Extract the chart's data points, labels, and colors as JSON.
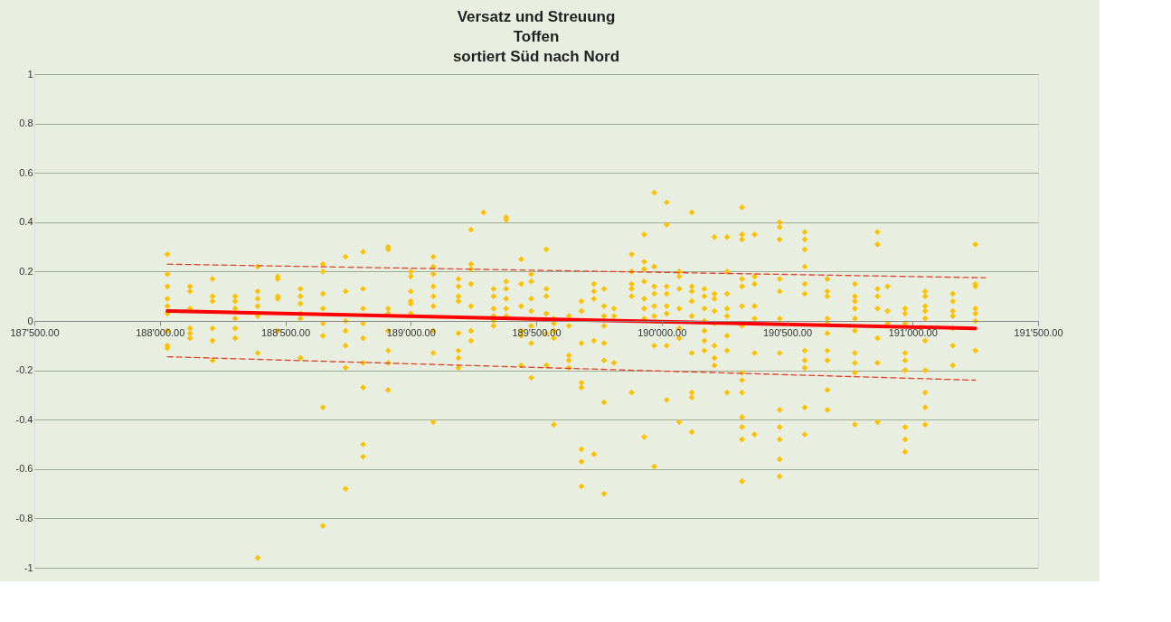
{
  "chart_data": {
    "type": "scatter",
    "title": "Versatz und Streuung\nToffen\nsortiert Süd nach Nord",
    "xlim": [
      187500,
      191500
    ],
    "xticks": [
      {
        "value": 187500,
        "label": "187'500.00"
      },
      {
        "value": 188000,
        "label": "188'000.00"
      },
      {
        "value": 188500,
        "label": "188'500.00"
      },
      {
        "value": 189000,
        "label": "189'000.00"
      },
      {
        "value": 189500,
        "label": "189'500.00"
      },
      {
        "value": 190000,
        "label": "190'000.00"
      },
      {
        "value": 190500,
        "label": "190'500.00"
      },
      {
        "value": 191000,
        "label": "191'000.00"
      },
      {
        "value": 191500,
        "label": "191'500.00"
      }
    ],
    "ylim": [
      -1,
      1
    ],
    "yticks": [
      -1,
      -0.8,
      -0.6,
      -0.4,
      -0.2,
      0,
      0.2,
      0.4,
      0.6,
      0.8,
      1
    ],
    "grid": "y",
    "series": [
      {
        "marker": "diamond",
        "color": "#ffc000",
        "x": [
          188030,
          188030,
          188030,
          188030,
          188030,
          188030,
          188030,
          188030,
          188030,
          188120,
          188120,
          188120,
          188120,
          188120,
          188120,
          188210,
          188210,
          188210,
          188210,
          188210,
          188210,
          188300,
          188300,
          188300,
          188300,
          188300,
          188300,
          188390,
          188390,
          188390,
          188390,
          188390,
          188390,
          188390,
          188470,
          188470,
          188470,
          188470,
          188470,
          188560,
          188560,
          188560,
          188560,
          188560,
          188560,
          188650,
          188650,
          188650,
          188650,
          188650,
          188650,
          188650,
          188650,
          188740,
          188740,
          188740,
          188740,
          188740,
          188740,
          188740,
          188810,
          188810,
          188810,
          188810,
          188810,
          188810,
          188810,
          188810,
          188810,
          188910,
          188910,
          188910,
          188910,
          188910,
          188910,
          188910,
          188910,
          189000,
          189000,
          189000,
          189000,
          189000,
          189000,
          189090,
          189090,
          189090,
          189090,
          189090,
          189090,
          189090,
          189090,
          189090,
          189190,
          189190,
          189190,
          189190,
          189190,
          189190,
          189190,
          189190,
          189240,
          189240,
          189240,
          189240,
          189240,
          189240,
          189240,
          189290,
          189330,
          189330,
          189330,
          189330,
          189330,
          189330,
          189380,
          189380,
          189380,
          189380,
          189380,
          189380,
          189380,
          189440,
          189440,
          189440,
          189440,
          189440,
          189440,
          189480,
          189480,
          189480,
          189480,
          189480,
          189480,
          189480,
          189540,
          189540,
          189540,
          189540,
          189540,
          189540,
          189570,
          189570,
          189570,
          189570,
          189570,
          189630,
          189630,
          189630,
          189630,
          189630,
          189680,
          189680,
          189680,
          189680,
          189680,
          189680,
          189680,
          189680,
          189730,
          189730,
          189730,
          189730,
          189730,
          189770,
          189770,
          189770,
          189770,
          189770,
          189770,
          189770,
          189770,
          189810,
          189810,
          189810,
          189880,
          189880,
          189880,
          189880,
          189880,
          189880,
          189930,
          189930,
          189930,
          189930,
          189930,
          189930,
          189930,
          189930,
          189970,
          189970,
          189970,
          189970,
          189970,
          189970,
          189970,
          189970,
          190020,
          190020,
          190020,
          190020,
          190020,
          190020,
          190020,
          190020,
          190070,
          190070,
          190070,
          190070,
          190070,
          190070,
          190070,
          190120,
          190120,
          190120,
          190120,
          190120,
          190120,
          190120,
          190120,
          190120,
          190170,
          190170,
          190170,
          190170,
          190170,
          190170,
          190170,
          190210,
          190210,
          190210,
          190210,
          190210,
          190210,
          190210,
          190210,
          190260,
          190260,
          190260,
          190260,
          190260,
          190260,
          190260,
          190260,
          190320,
          190320,
          190320,
          190320,
          190320,
          190320,
          190320,
          190320,
          190320,
          190320,
          190320,
          190320,
          190320,
          190320,
          190370,
          190370,
          190370,
          190370,
          190370,
          190370,
          190370,
          190470,
          190470,
          190470,
          190470,
          190470,
          190470,
          190470,
          190470,
          190470,
          190470,
          190470,
          190470,
          190570,
          190570,
          190570,
          190570,
          190570,
          190570,
          190570,
          190570,
          190570,
          190570,
          190570,
          190660,
          190660,
          190660,
          190660,
          190660,
          190660,
          190660,
          190660,
          190660,
          190660,
          190770,
          190770,
          190770,
          190770,
          190770,
          190770,
          190770,
          190770,
          190770,
          190770,
          190860,
          190860,
          190860,
          190860,
          190860,
          190860,
          190860,
          190860,
          190900,
          190900,
          190900,
          190970,
          190970,
          190970,
          190970,
          190970,
          190970,
          190970,
          190970,
          190970,
          191050,
          191050,
          191050,
          191050,
          191050,
          191050,
          191050,
          191050,
          191050,
          191050,
          191160,
          191160,
          191160,
          191160,
          191160,
          191160,
          191160,
          191250,
          191250,
          191250,
          191250,
          191250,
          191250,
          191250
        ],
        "values": [
          0.27,
          0.19,
          0.14,
          0.09,
          0.06,
          0.03,
          -0.04,
          -0.1,
          -0.11,
          0.14,
          0.12,
          0.05,
          -0.03,
          -0.05,
          -0.07,
          0.17,
          0.1,
          0.08,
          -0.03,
          -0.08,
          -0.16,
          0.1,
          0.08,
          0.05,
          0.01,
          -0.03,
          -0.07,
          0.22,
          0.12,
          0.09,
          0.06,
          0.02,
          -0.13,
          -0.96,
          0.18,
          0.17,
          0.1,
          0.09,
          -0.04,
          0.13,
          0.1,
          0.07,
          0.03,
          0.01,
          -0.15,
          0.23,
          0.2,
          0.11,
          0.05,
          -0.01,
          -0.06,
          -0.35,
          -0.83,
          0.26,
          0.12,
          0,
          -0.04,
          -0.1,
          -0.19,
          -0.68,
          0.28,
          0.13,
          0.05,
          -0.01,
          -0.07,
          -0.17,
          -0.27,
          -0.5,
          -0.55,
          0.3,
          0.29,
          0.05,
          0.03,
          -0.04,
          -0.12,
          -0.17,
          -0.28,
          0.2,
          0.18,
          0.12,
          0.08,
          0.07,
          0.03,
          0.26,
          0.22,
          0.19,
          0.14,
          0.1,
          0.06,
          -0.04,
          -0.13,
          -0.41,
          0.17,
          0.14,
          0.1,
          0.08,
          -0.05,
          -0.12,
          -0.15,
          -0.19,
          0.37,
          0.23,
          0.21,
          0.15,
          0.06,
          -0.04,
          -0.08,
          0.44,
          0.13,
          0.1,
          0.05,
          0.02,
          0,
          -0.02,
          0.42,
          0.41,
          0.16,
          0.13,
          0.09,
          0.05,
          0.02,
          0.25,
          0.15,
          0.06,
          -0.04,
          -0.06,
          -0.18,
          0.19,
          0.16,
          0.09,
          0.04,
          -0.02,
          -0.09,
          -0.23,
          0.29,
          0.13,
          0.1,
          0.03,
          -0.05,
          -0.18,
          0.01,
          -0.01,
          -0.04,
          -0.07,
          -0.42,
          0.02,
          -0.02,
          -0.14,
          -0.16,
          -0.19,
          0.08,
          0.04,
          -0.09,
          -0.25,
          -0.27,
          -0.52,
          -0.57,
          -0.67,
          0.15,
          0.12,
          0.09,
          -0.08,
          -0.54,
          0.13,
          0.06,
          0.02,
          -0.02,
          -0.09,
          -0.16,
          -0.33,
          -0.7,
          0.05,
          0.02,
          -0.17,
          0.27,
          0.2,
          0.15,
          0.13,
          0.1,
          -0.29,
          0.35,
          0.24,
          0.21,
          0.16,
          0.09,
          0.05,
          0.01,
          -0.47,
          0.52,
          0.22,
          0.14,
          0.11,
          0.06,
          0.02,
          -0.1,
          -0.59,
          0.48,
          0.39,
          0.14,
          0.11,
          0.06,
          0.03,
          -0.1,
          -0.32,
          0.2,
          0.18,
          0.13,
          0.05,
          -0.03,
          -0.07,
          -0.41,
          0.44,
          0.14,
          0.12,
          0.08,
          0.02,
          -0.13,
          -0.29,
          -0.31,
          -0.45,
          0.13,
          0.1,
          0.05,
          0,
          -0.04,
          -0.08,
          -0.12,
          0.34,
          0.11,
          0.09,
          0.04,
          -0.01,
          -0.1,
          -0.15,
          -0.18,
          0.34,
          0.2,
          0.11,
          0.05,
          0.02,
          -0.06,
          -0.12,
          -0.29,
          0.46,
          0.35,
          0.33,
          0.17,
          0.14,
          0.06,
          -0.02,
          -0.21,
          -0.24,
          -0.29,
          -0.39,
          -0.43,
          -0.48,
          -0.65,
          0.35,
          0.18,
          0.15,
          0.06,
          0.01,
          -0.13,
          -0.46,
          0.4,
          0.38,
          0.33,
          0.17,
          0.12,
          0.01,
          -0.13,
          -0.36,
          -0.43,
          -0.48,
          -0.56,
          -0.63,
          0.36,
          0.33,
          0.29,
          0.22,
          0.15,
          0.11,
          -0.12,
          -0.16,
          -0.19,
          -0.35,
          -0.46,
          0.17,
          0.12,
          0.1,
          0.01,
          -0.01,
          -0.05,
          -0.12,
          -0.16,
          -0.28,
          -0.36,
          0.15,
          0.1,
          0.08,
          0.05,
          0.01,
          -0.04,
          -0.13,
          -0.17,
          -0.21,
          -0.42,
          0.36,
          0.31,
          0.13,
          0.1,
          0.05,
          -0.07,
          -0.17,
          -0.41,
          0.14,
          0.04,
          -0.01,
          0.05,
          0.03,
          -0.01,
          -0.13,
          -0.16,
          -0.2,
          -0.43,
          -0.48,
          -0.53,
          0.12,
          0.1,
          0.06,
          0.04,
          0.01,
          -0.08,
          -0.2,
          -0.29,
          -0.35,
          -0.42,
          0.11,
          0.08,
          0.04,
          0.02,
          -0.03,
          -0.1,
          -0.18,
          0.31,
          0.15,
          0.14,
          0.05,
          0.03,
          0,
          -0.12
        ]
      },
      {
        "type": "line",
        "color": "#ff0000",
        "line_style": "solid",
        "x": [
          188030,
          191250
        ],
        "values": [
          0.04,
          -0.03
        ]
      },
      {
        "type": "line",
        "color": "#e0402a",
        "line_style": "dashed",
        "x": [
          188030,
          191290
        ],
        "values": [
          0.23,
          0.175
        ]
      },
      {
        "type": "line",
        "color": "#e0402a",
        "line_style": "dashed",
        "x": [
          188030,
          191250
        ],
        "values": [
          -0.145,
          -0.24
        ]
      }
    ]
  }
}
